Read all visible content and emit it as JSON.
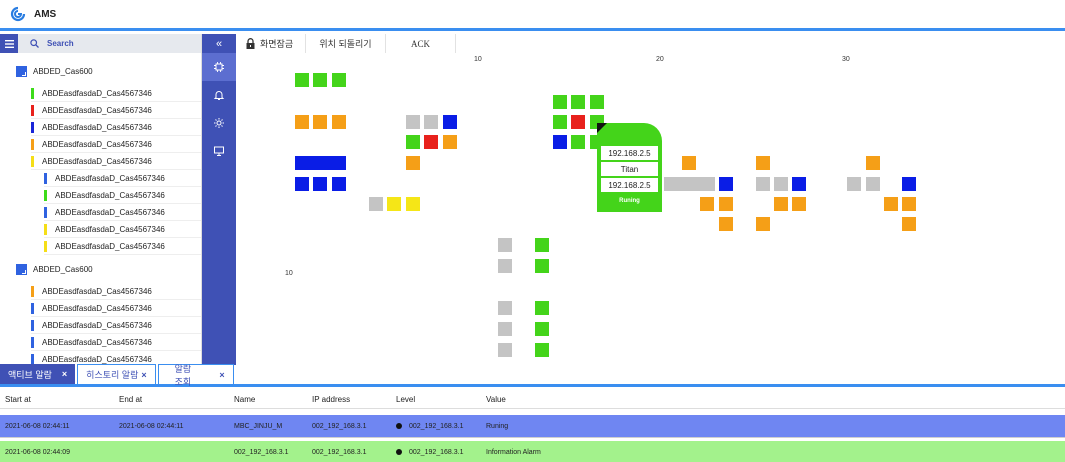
{
  "app": {
    "title": "AMS"
  },
  "sidebar": {
    "search_label": "Search",
    "groups": [
      {
        "label": "ABDED_Cas600",
        "items": [
          {
            "label": "ABDEasdfasdaD_Cas4567346",
            "color": "#3ddb1a",
            "indent": 0
          },
          {
            "label": "ABDEasdfasdaD_Cas4567346",
            "color": "#e8211c",
            "indent": 0
          },
          {
            "label": "ABDEasdfasdaD_Cas4567346",
            "color": "#1a25d8",
            "indent": 0
          },
          {
            "label": "ABDEasdfasdaD_Cas4567346",
            "color": "#f59f17",
            "indent": 0
          },
          {
            "label": "ABDEasdfasdaD_Cas4567346",
            "color": "#f5de17",
            "indent": 0
          },
          {
            "label": "ABDEasdfasdaD_Cas4567346",
            "color": "#2f62e0",
            "indent": 1
          },
          {
            "label": "ABDEasdfasdaD_Cas4567346",
            "color": "#3ddb1a",
            "indent": 1
          },
          {
            "label": "ABDEasdfasdaD_Cas4567346",
            "color": "#2f62e0",
            "indent": 1
          },
          {
            "label": "ABDEasdfasdaD_Cas4567346",
            "color": "#f5de17",
            "indent": 1
          },
          {
            "label": "ABDEasdfasdaD_Cas4567346",
            "color": "#f5de17",
            "indent": 1
          }
        ]
      },
      {
        "label": "ABDED_Cas600",
        "items": [
          {
            "label": "ABDEasdfasdaD_Cas4567346",
            "color": "#f59f17",
            "indent": 0
          },
          {
            "label": "ABDEasdfasdaD_Cas4567346",
            "color": "#2f62e0",
            "indent": 0
          },
          {
            "label": "ABDEasdfasdaD_Cas4567346",
            "color": "#2f62e0",
            "indent": 0
          },
          {
            "label": "ABDEasdfasdaD_Cas4567346",
            "color": "#2f62e0",
            "indent": 0
          },
          {
            "label": "ABDEasdfasdaD_Cas4567346",
            "color": "#2f62e0",
            "indent": 0
          }
        ]
      }
    ]
  },
  "iconbar": {
    "collapse_label": "«",
    "icons": [
      "chip-icon",
      "bell-icon",
      "gear-icon",
      "monitor-icon"
    ]
  },
  "toolbar": {
    "lock_label": "화면잠금",
    "reset_label": "위치 되돌리기",
    "ack_label": "ACK"
  },
  "map": {
    "x_ticks": [
      "10",
      "20",
      "30"
    ],
    "y_ticks": [
      "10"
    ],
    "device_card": {
      "ip_top": "192.168.2.5",
      "name": "Titan",
      "ip_bottom": "192.168.2.5",
      "status": "Runing"
    }
  },
  "tabs": [
    {
      "label": "액티브 알람",
      "active": true
    },
    {
      "label": "히스토리 알람",
      "active": false
    },
    {
      "label": "알람 조회",
      "active": false
    }
  ],
  "table": {
    "columns": [
      "Start at",
      "End at",
      "Name",
      "IP address",
      "Level",
      "Value"
    ],
    "rows": [
      {
        "start": "2021-06-08 02:44:11",
        "end": "2021-06-08 02:44:11",
        "name": "MBC_JINJU_M",
        "ip": "002_192_168.3.1",
        "level": "002_192_168.3.1",
        "value": "Runing",
        "bg": "#6f86f2"
      },
      {
        "start": "2021-06-08 02:44:09",
        "end": "",
        "name": "002_192_168.3.1",
        "ip": "002_192_168.3.1",
        "level": "002_192_168.3.1",
        "value": "Information Alarm",
        "bg": "#a3f28c"
      }
    ]
  },
  "colors": {
    "green": "#44d41a",
    "orange": "#f59f17",
    "blue": "#0a1de6",
    "red": "#e8211c",
    "gray": "#c4c4c4",
    "yellow": "#f5e617",
    "accent": "#3f51b5"
  }
}
